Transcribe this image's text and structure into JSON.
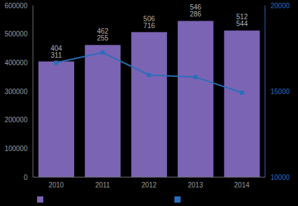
{
  "chart_data": {
    "type": "bar",
    "categories": [
      "2010",
      "2011",
      "2012",
      "2013",
      "2014"
    ],
    "series": [
      {
        "type": "bar",
        "color": "#7b64b4",
        "values": [
          404311,
          462255,
          506716,
          546286,
          512544
        ],
        "data_labels": true,
        "value_labels": [
          "404 311",
          "462 255",
          "506 716",
          "546 286",
          "512 544"
        ]
      },
      {
        "type": "line",
        "color": "#2a6ebb",
        "axis": "y2",
        "marker": "square",
        "values": [
          16667,
          17262,
          15952,
          15833,
          14920
        ]
      }
    ],
    "ylim": [
      0,
      600000
    ],
    "yticks": [
      0,
      100000,
      200000,
      300000,
      400000,
      500000,
      600000
    ],
    "y2lim": [
      10000,
      20000
    ],
    "y2ticks": [
      10000,
      15000,
      20000
    ],
    "grid": false
  }
}
